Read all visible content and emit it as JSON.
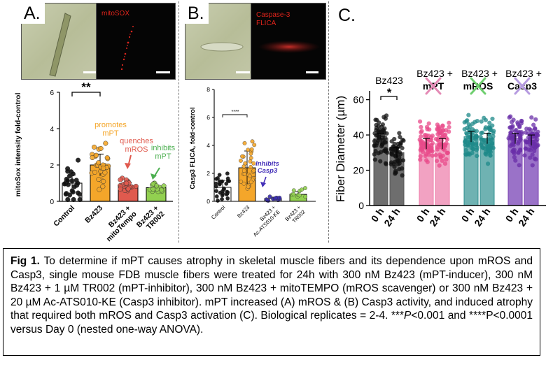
{
  "panelA": {
    "tag": "A.",
    "micro_label": "mitoSOX",
    "chart_data": {
      "type": "bar",
      "categories": [
        "Control",
        "Bz423",
        "Bz423 + mitoTempo",
        "Bz423 + TR002"
      ],
      "values": [
        1.0,
        2.0,
        0.85,
        0.75
      ],
      "errors": [
        0.45,
        0.6,
        0.2,
        0.1
      ],
      "ylabel": "mitoSox intensity fold-control",
      "yticks": [
        "0",
        "2",
        "4",
        "6"
      ],
      "ylim": [
        0,
        6
      ],
      "significance": "**",
      "annotations": [
        "promotes mPT",
        "quenches mROS",
        "inhibits mPT"
      ],
      "colors": [
        "#ffffff",
        "#f4a62a",
        "#e05a4e",
        "#92d050"
      ]
    }
  },
  "panelB": {
    "tag": "B.",
    "micro_label_line1": "Caspase-3",
    "micro_label_line2": "FLICA",
    "chart_data": {
      "type": "bar",
      "categories": [
        "Control",
        "Bz423",
        "Bz423 + Ac-ATS010-KE",
        "Bz423 + TR002"
      ],
      "values": [
        1.0,
        2.4,
        0.2,
        0.5
      ],
      "errors": [
        0.5,
        1.2,
        0.1,
        0.2
      ],
      "ylabel": "Casp3 FLICA, fold-control",
      "yticks": [
        "0",
        "2",
        "4",
        "6",
        "8"
      ],
      "ylim": [
        0,
        8
      ],
      "significance": "****",
      "annotations": [
        "Inhibits Casp3"
      ],
      "colors": [
        "#ffffff",
        "#f4a62a",
        "#3b2fb0",
        "#92d050"
      ]
    }
  },
  "panelC": {
    "tag": "C.",
    "chart_data": {
      "type": "bar",
      "categories": [
        "0 h",
        "24 h",
        "0 h",
        "24 h",
        "0 h",
        "24 h",
        "0 h",
        "24 h"
      ],
      "values": [
        38,
        30,
        35,
        35,
        39,
        38,
        38,
        37
      ],
      "errors": [
        3,
        3,
        3,
        3,
        3,
        3,
        3,
        3
      ],
      "ylabel": "Fiber Diameter (µm)",
      "yticks": [
        "0",
        "20",
        "40",
        "60"
      ],
      "ylim": [
        0,
        65
      ],
      "group_labels": [
        "Bz423",
        "Bz423 +",
        "Bz423 +",
        "Bz423 +"
      ],
      "group_sublabels": [
        "",
        "mPT",
        "mROS",
        "Casp3"
      ],
      "significance": "*",
      "colors": [
        "#555555",
        "#555555",
        "#ee7ba8",
        "#ee7ba8",
        "#2d8f8f",
        "#2d8f8f",
        "#7a3fb0",
        "#7a3fb0"
      ],
      "dot_colors": [
        "#111111",
        "#111111",
        "#e84a8a",
        "#e84a8a",
        "#1f8a8a",
        "#1f8a8a",
        "#6a2fa8",
        "#6a2fa8"
      ],
      "cross_colors": [
        "#e48ab5",
        "#6fcf6f",
        "#b69be0"
      ]
    }
  },
  "caption": {
    "fig_label": "Fig 1.",
    "part1": " To determine if mPT causes atrophy in skeletal muscle fibers and its dependence upon mROS and Casp3, single mouse FDB muscle fibers were treated for 24h with 300 nM Bz423 (mPT-inducer), 300 nM Bz423 + 1 µM TR002 (mPT-inhibitor), 300 nM Bz423 + mitoTEMPO (mROS scavenger) or 300 nM Bz423 + 20 µM Ac-ATS010-KE (Casp3 inhibitor). mPT increased (A) mROS & (B) Casp3 activity, and induced atrophy that required both mROS and Casp3 activation (C). Biological replicates = 2-4. ***",
    "p1": "P",
    "part2": "<0.001 and ****P<0.0001 versus Day 0 (nested one-way ANOVA)."
  }
}
